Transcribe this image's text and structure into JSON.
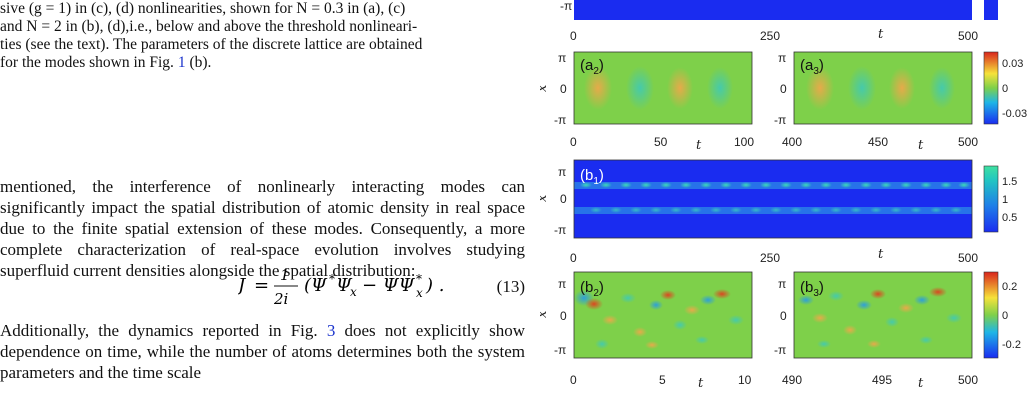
{
  "caption": {
    "line1": "sive (g = 1) in (c), (d) nonlinearities, shown for N = 0.3 in (a), (c)",
    "line2": "and N = 2 in (b), (d),i.e., below and above the threshold nonlineari-",
    "line3": "ties (see the text). The parameters of the discrete lattice are obtained",
    "line4_pre": "for the modes shown in Fig. ",
    "line4_ref": "1",
    "line4_post": " (b)."
  },
  "body": {
    "para1": "mentioned, the interference of nonlinearly interacting modes can significantly impact the spatial distribution of atomic density in real space due to the finite spatial extension of these modes. Consequently, a more complete characterization of real-space evolution involves studying superfluid current densities alongside the spatial distribution:",
    "equation_number": "(13)",
    "para2_pre": "Additionally, the dynamics reported in Fig. ",
    "para2_ref": "3",
    "para2_post": " does not explicitly show dependence on time, while the number of atoms determines both the system parameters and the time scale"
  },
  "figure": {
    "axis_t": "t",
    "axis_x": "x",
    "pi": "π",
    "neg_pi": "-π",
    "zero": "0",
    "panels": {
      "a2": "(a",
      "a2_sub": "2",
      "a3": "(a",
      "a3_sub": "3",
      "b1": "(b",
      "b1_sub": "1",
      "b2": "(b",
      "b2_sub": "2",
      "b3": "(b",
      "b3_sub": "3",
      "close": ")"
    },
    "ticks_full": [
      "0",
      "250",
      "500"
    ],
    "ticks_a2": [
      "0",
      "50",
      "100"
    ],
    "ticks_a3": [
      "400",
      "450",
      "500"
    ],
    "ticks_b2": [
      "0",
      "5",
      "10"
    ],
    "ticks_b3": [
      "490",
      "495",
      "500"
    ],
    "cb_a": [
      "0.03",
      "0",
      "-0.03"
    ],
    "cb_b1": [
      "1.5",
      "1",
      "0.5"
    ],
    "cb_b2": [
      "0.2",
      "0",
      "-0.2"
    ],
    "colors": {
      "deep_blue": "#1a2cf0",
      "green": "#7ed04a",
      "red": "#d9251c"
    }
  }
}
